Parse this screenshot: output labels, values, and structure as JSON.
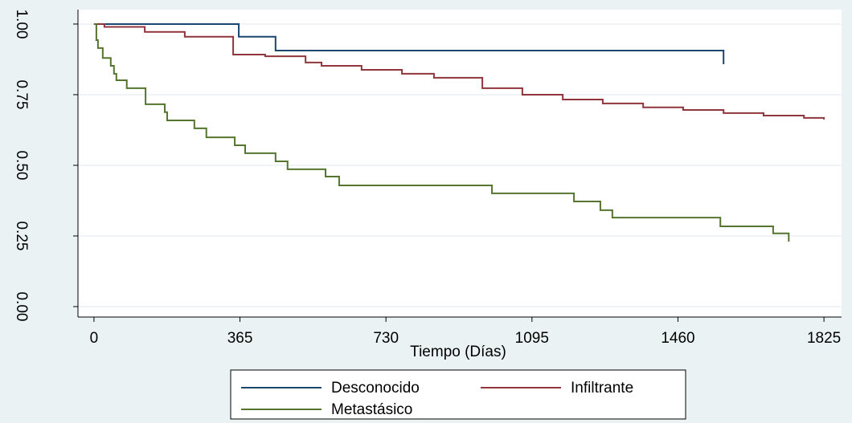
{
  "chart_data": {
    "type": "step",
    "x_label": "Tiempo (Días)",
    "xlim": [
      -40,
      1869
    ],
    "ylim": [
      -0.037,
      1.051
    ],
    "xticks": [
      0,
      365,
      730,
      1095,
      1460,
      1825
    ],
    "yticks": [
      {
        "value": 0,
        "label": "0.00"
      },
      {
        "value": 0.25,
        "label": "0.25"
      },
      {
        "value": 0.5,
        "label": "0.50"
      },
      {
        "value": 0.75,
        "label": "0.75"
      },
      {
        "value": 1,
        "label": "1.00"
      }
    ],
    "grid": true,
    "legend": "bottom",
    "series": [
      {
        "name": "Desconocido",
        "color": "#1a476f",
        "x": [
          0,
          362,
          454,
          1574
        ],
        "values": [
          1.0,
          0.955,
          0.906,
          0.858
        ]
      },
      {
        "name": "Infiltrante",
        "color": "#90353b",
        "x": [
          0,
          26,
          127,
          227,
          348,
          428,
          529,
          569,
          669,
          770,
          850,
          971,
          1071,
          1172,
          1272,
          1373,
          1473,
          1574,
          1674,
          1775,
          1825
        ],
        "values": [
          1.0,
          0.99,
          0.972,
          0.955,
          0.892,
          0.886,
          0.864,
          0.852,
          0.838,
          0.824,
          0.81,
          0.773,
          0.75,
          0.733,
          0.719,
          0.705,
          0.696,
          0.685,
          0.676,
          0.668,
          0.662
        ]
      },
      {
        "name": "Metastásico",
        "color": "#55752f",
        "x": [
          0,
          6,
          10,
          22,
          42,
          50,
          56,
          82,
          129,
          177,
          183,
          251,
          281,
          352,
          378,
          454,
          484,
          579,
          613,
          995,
          1200,
          1266,
          1296,
          1566,
          1698,
          1737
        ],
        "values": [
          1.0,
          0.943,
          0.915,
          0.88,
          0.852,
          0.824,
          0.801,
          0.773,
          0.716,
          0.688,
          0.659,
          0.631,
          0.599,
          0.571,
          0.543,
          0.514,
          0.486,
          0.46,
          0.429,
          0.401,
          0.372,
          0.341,
          0.315,
          0.284,
          0.259,
          0.23
        ]
      }
    ]
  }
}
